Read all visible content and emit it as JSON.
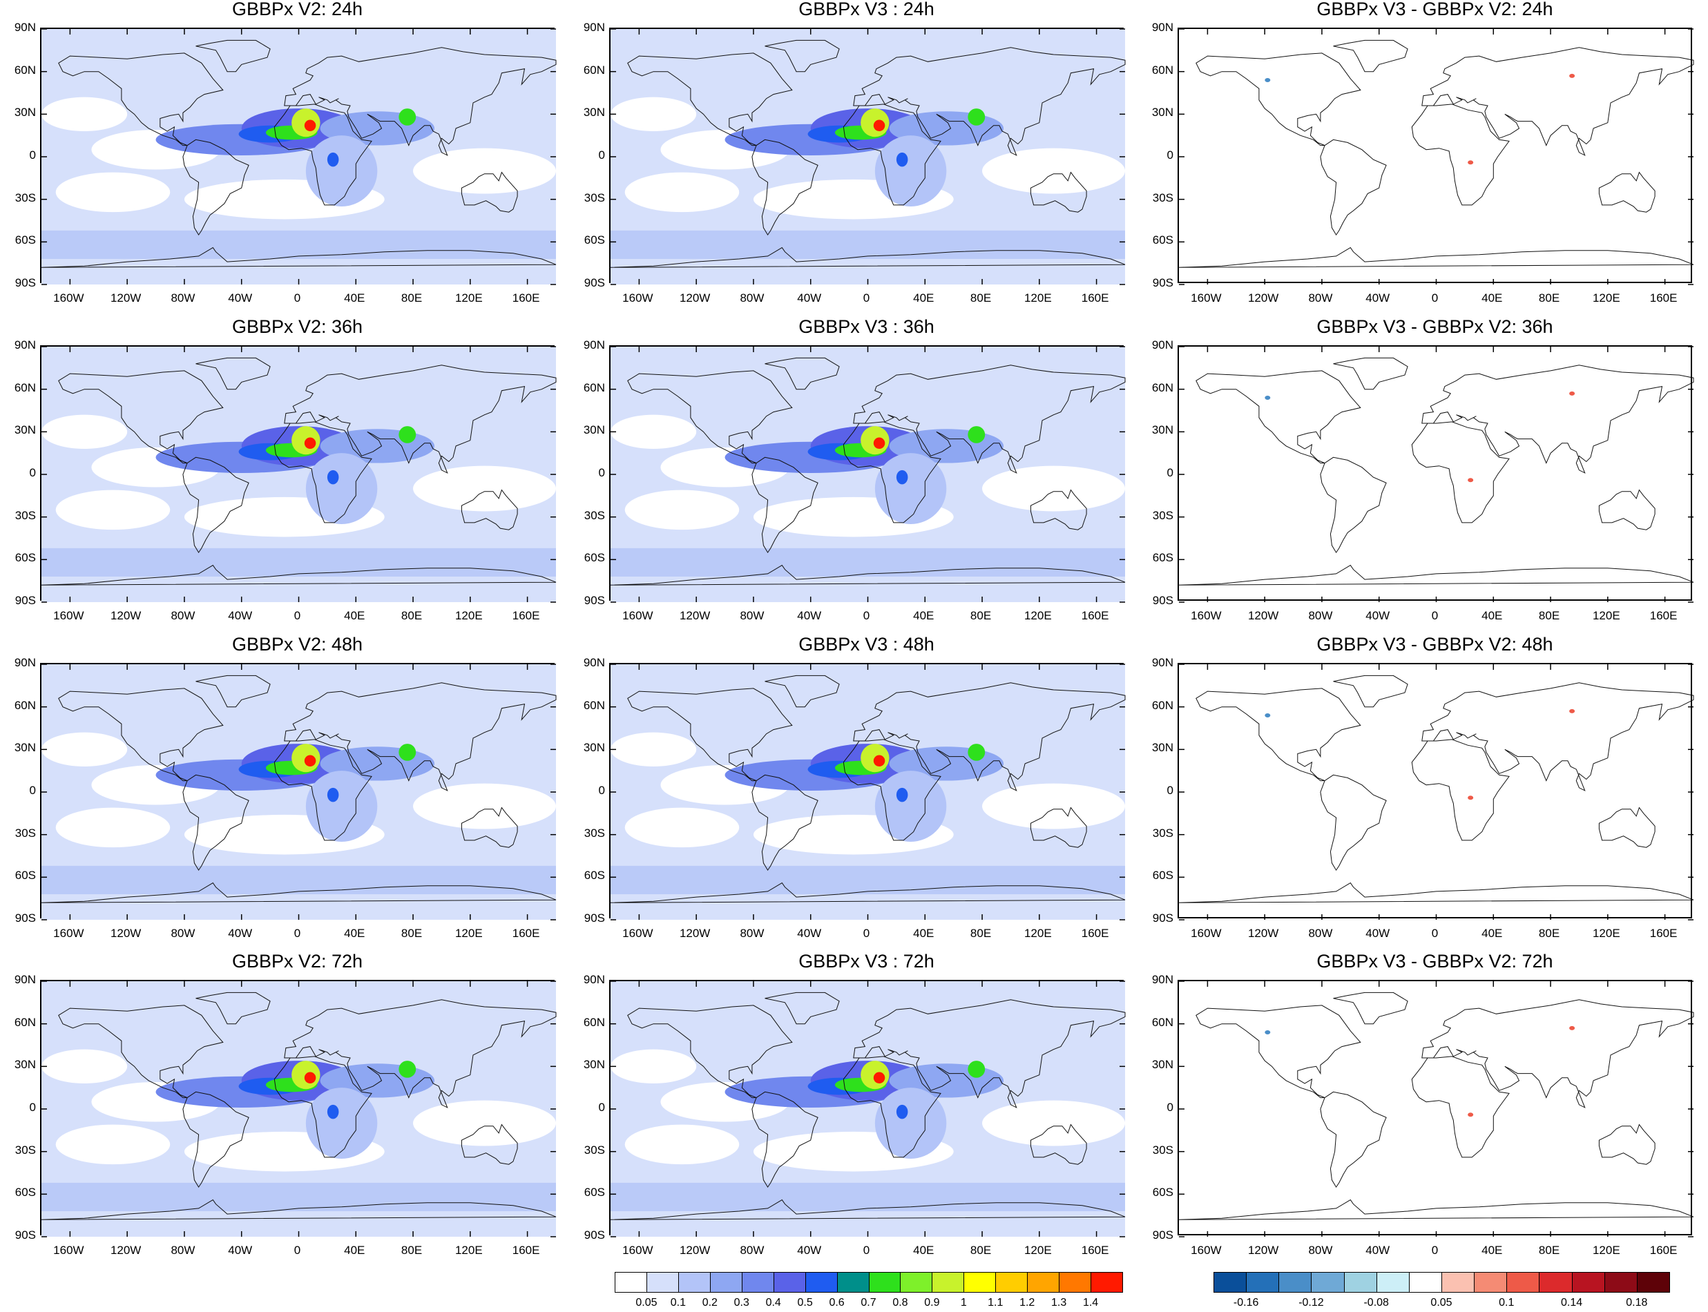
{
  "panels": [
    {
      "title": "GBBPx V2: 24h",
      "kind": "field",
      "row": 0,
      "col": 0
    },
    {
      "title": "GBBPx V3 : 24h",
      "kind": "field",
      "row": 0,
      "col": 1
    },
    {
      "title": "GBBPx V3 - GBBPx V2: 24h",
      "kind": "diff",
      "row": 0,
      "col": 2
    },
    {
      "title": "GBBPx V2: 36h",
      "kind": "field",
      "row": 1,
      "col": 0
    },
    {
      "title": "GBBPx V3 : 36h",
      "kind": "field",
      "row": 1,
      "col": 1
    },
    {
      "title": "GBBPx V3 - GBBPx V2: 36h",
      "kind": "diff",
      "row": 1,
      "col": 2
    },
    {
      "title": "GBBPx V2: 48h",
      "kind": "field",
      "row": 2,
      "col": 0
    },
    {
      "title": "GBBPx V3 : 48h",
      "kind": "field",
      "row": 2,
      "col": 1
    },
    {
      "title": "GBBPx V3 - GBBPx V2: 48h",
      "kind": "diff",
      "row": 2,
      "col": 2
    },
    {
      "title": "GBBPx V2: 72h",
      "kind": "field",
      "row": 3,
      "col": 0
    },
    {
      "title": "GBBPx V3 : 72h",
      "kind": "field",
      "row": 3,
      "col": 1
    },
    {
      "title": "GBBPx V3 - GBBPx V2: 72h",
      "kind": "diff",
      "row": 3,
      "col": 2
    }
  ],
  "lat_ticks": [
    "90N",
    "60N",
    "30N",
    "0",
    "30S",
    "60S",
    "90S"
  ],
  "lon_ticks": [
    "160W",
    "120W",
    "80W",
    "40W",
    "0",
    "40E",
    "80E",
    "120E",
    "160E"
  ],
  "lon_values": [
    -160,
    -120,
    -80,
    -40,
    0,
    40,
    80,
    120,
    160
  ],
  "lat_values": [
    90,
    60,
    30,
    0,
    -30,
    -60,
    -90
  ],
  "colorbar_field": {
    "labels": [
      "0.05",
      "0.1",
      "0.2",
      "0.3",
      "0.4",
      "0.5",
      "0.6",
      "0.7",
      "0.8",
      "0.9",
      "1",
      "1.1",
      "1.2",
      "1.3",
      "1.4"
    ],
    "colors": [
      "#ffffff",
      "#d6e0fb",
      "#b3c4f8",
      "#8ea7f2",
      "#7087ee",
      "#5a62e8",
      "#1f5cf0",
      "#008f8a",
      "#2ee01c",
      "#7ef02a",
      "#c8f22c",
      "#ffff00",
      "#ffcd00",
      "#ffa500",
      "#ff7800",
      "#ff1a00"
    ]
  },
  "colorbar_diff": {
    "labels": [
      "-0.16",
      "-0.12",
      "-0.08",
      "0.05",
      "0.1",
      "0.14",
      "0.18"
    ],
    "colors": [
      "#0a4f9a",
      "#2470b8",
      "#4a8ec8",
      "#6fa9d6",
      "#9fd2e2",
      "#cdeff7",
      "#ffffff",
      "#fbc1b1",
      "#f58b74",
      "#ee5a48",
      "#dc2a2c",
      "#b81421",
      "#8d0b17",
      "#5e0208"
    ]
  }
}
